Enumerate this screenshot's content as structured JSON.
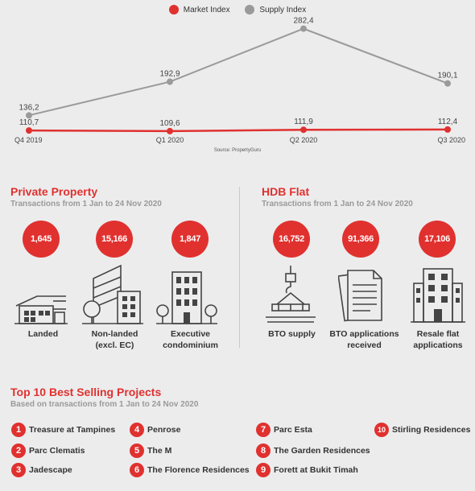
{
  "chart_data": {
    "type": "line",
    "categories": [
      "Q4 2019",
      "Q1 2020",
      "Q2 2020",
      "Q3 2020"
    ],
    "series": [
      {
        "name": "Market Index",
        "values": [
          110.7,
          109.6,
          111.9,
          112.4
        ],
        "labels": [
          "110,7",
          "109,6",
          "111,9",
          "112,4"
        ],
        "color": "#e0312f"
      },
      {
        "name": "Supply Index",
        "values": [
          136.2,
          192.9,
          282.4,
          190.1
        ],
        "labels": [
          "136,2",
          "192,9",
          "282,4",
          "190,1"
        ],
        "color": "#9a9a9a"
      }
    ],
    "source": "Source: PropertyGuru",
    "xlabel": "",
    "ylabel": ""
  },
  "private": {
    "title": "Private Property",
    "subtitle": "Transactions from 1 Jan to 24 Nov 2020",
    "items": [
      {
        "value": "1,645",
        "label1": "Landed",
        "label2": "",
        "icon": "landed-house-icon"
      },
      {
        "value": "15,166",
        "label1": "Non-landed",
        "label2": "(excl. EC)",
        "icon": "non-landed-building-icon"
      },
      {
        "value": "1,847",
        "label1": "Executive",
        "label2": "condominium",
        "icon": "condominium-icon"
      }
    ]
  },
  "hdb": {
    "title": "HDB Flat",
    "subtitle": "Transactions from 1 Jan to 24 Nov 2020",
    "items": [
      {
        "value": "16,752",
        "label1": "BTO supply",
        "label2": "",
        "icon": "crane-construction-icon"
      },
      {
        "value": "91,366",
        "label1": "BTO applications",
        "label2": "received",
        "icon": "documents-icon"
      },
      {
        "value": "17,106",
        "label1": "Resale flat",
        "label2": "applications",
        "icon": "hdb-block-icon"
      }
    ]
  },
  "top10": {
    "title": "Top 10 Best Selling Projects",
    "subtitle": "Based on transactions from 1 Jan to 24 Nov 2020",
    "projects": [
      {
        "rank": "1",
        "name": "Treasure at Tampines"
      },
      {
        "rank": "2",
        "name": "Parc Clematis"
      },
      {
        "rank": "3",
        "name": "Jadescape"
      },
      {
        "rank": "4",
        "name": "Penrose"
      },
      {
        "rank": "5",
        "name": "The M"
      },
      {
        "rank": "6",
        "name": "The Florence Residences"
      },
      {
        "rank": "7",
        "name": "Parc Esta"
      },
      {
        "rank": "8",
        "name": "The Garden Residences"
      },
      {
        "rank": "9",
        "name": "Forett at Bukit Timah"
      },
      {
        "rank": "10",
        "name": "Stirling Residences"
      }
    ]
  }
}
